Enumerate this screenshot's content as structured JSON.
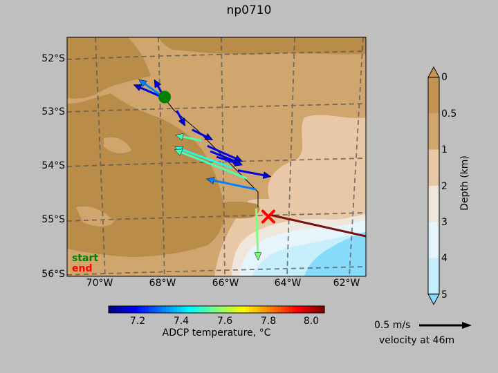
{
  "title": "np0710",
  "map": {
    "lat_labels": [
      "52°S",
      "53°S",
      "54°S",
      "55°S",
      "56°S"
    ],
    "lon_labels": [
      "70°W",
      "68°W",
      "66°W",
      "64°W",
      "62°W"
    ],
    "legend": {
      "start": "start",
      "end": "end",
      "start_color": "#008000",
      "end_color": "#ff0000"
    },
    "land_color": "#b98c4a",
    "track_color": "#000000",
    "ship_track_color": "#7a1010"
  },
  "depth_colorbar": {
    "label": "Depth (km)",
    "ticks": [
      "0",
      "0.5",
      "1",
      "2",
      "3",
      "4",
      "5"
    ],
    "colors": [
      "#c49552",
      "#d1a66e",
      "#e8c8a6",
      "#efe6dc",
      "#e6f4fb",
      "#c6eefd",
      "#86dafa"
    ]
  },
  "temp_colorbar": {
    "label": "ADCP temperature, °C",
    "ticks": [
      "7.2",
      "7.4",
      "7.6",
      "7.8",
      "8.0"
    ]
  },
  "scale": {
    "speed_label": "0.5 m/s",
    "depth_label": "velocity at 46m"
  },
  "chart_data": {
    "type": "map",
    "title": "np0710",
    "x_axis": {
      "name": "longitude",
      "range": [
        -71.2,
        -61.4
      ],
      "ticks": [
        -70,
        -68,
        -66,
        -64,
        -62
      ]
    },
    "y_axis": {
      "name": "latitude",
      "range": [
        -56.0,
        -51.6
      ],
      "ticks": [
        -52,
        -53,
        -54,
        -55,
        -56
      ]
    },
    "start": {
      "lon": -68.0,
      "lat": -52.7
    },
    "end": {
      "lon": -64.6,
      "lat": -54.9
    },
    "vectors": [
      {
        "lon": -68.0,
        "lat": -52.72,
        "u": -0.3,
        "v": 0.13,
        "temp": 7.15
      },
      {
        "lon": -68.0,
        "lat": -52.72,
        "u": -0.25,
        "v": 0.18,
        "temp": 7.3
      },
      {
        "lon": -68.0,
        "lat": -52.72,
        "u": -0.1,
        "v": 0.18,
        "temp": 7.15
      },
      {
        "lon": -67.6,
        "lat": -52.95,
        "u": 0.08,
        "v": -0.15,
        "temp": 7.15
      },
      {
        "lon": -67.1,
        "lat": -53.3,
        "u": 0.2,
        "v": -0.1,
        "temp": 7.15
      },
      {
        "lon": -66.8,
        "lat": -53.5,
        "u": -0.25,
        "v": 0.05,
        "temp": 7.5
      },
      {
        "lon": -66.6,
        "lat": -53.6,
        "u": 0.34,
        "v": -0.15,
        "temp": 7.15
      },
      {
        "lon": -66.5,
        "lat": -53.7,
        "u": 0.3,
        "v": -0.12,
        "temp": 7.15
      },
      {
        "lon": -66.3,
        "lat": -53.8,
        "u": 0.25,
        "v": -0.08,
        "temp": 7.15
      },
      {
        "lon": -65.8,
        "lat": -54.0,
        "u": -0.55,
        "v": 0.2,
        "temp": 7.45
      },
      {
        "lon": -65.6,
        "lat": -54.05,
        "u": 0.32,
        "v": -0.06,
        "temp": 7.15
      },
      {
        "lon": -65.3,
        "lat": -54.2,
        "u": -0.7,
        "v": 0.28,
        "temp": 7.5
      },
      {
        "lon": -65.0,
        "lat": -54.4,
        "u": -0.48,
        "v": 0.1,
        "temp": 7.3
      },
      {
        "lon": -65.0,
        "lat": -54.75,
        "u": 0.02,
        "v": -0.5,
        "temp": 7.55
      }
    ]
  }
}
